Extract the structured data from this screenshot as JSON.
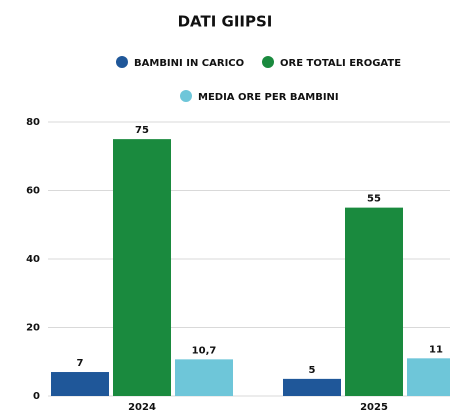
{
  "chart_data": {
    "type": "bar",
    "title": "DATI GIIPSI",
    "categories": [
      "2024",
      "2025"
    ],
    "series": [
      {
        "name": "BAMBINI IN CARICO",
        "color": "#1f5799",
        "values": [
          7,
          5
        ]
      },
      {
        "name": "ORE TOTALI EROGATE",
        "color": "#1a8a3e",
        "values": [
          75,
          55
        ]
      },
      {
        "name": "MEDIA ORE PER BAMBINI",
        "color": "#6ec6d9",
        "values": [
          10.7,
          11
        ],
        "value_labels": [
          "10,7",
          "11"
        ]
      }
    ],
    "ylim": [
      0,
      80
    ],
    "yticks": [
      0,
      20,
      40,
      60,
      80
    ],
    "grid": true,
    "legend": "top"
  }
}
